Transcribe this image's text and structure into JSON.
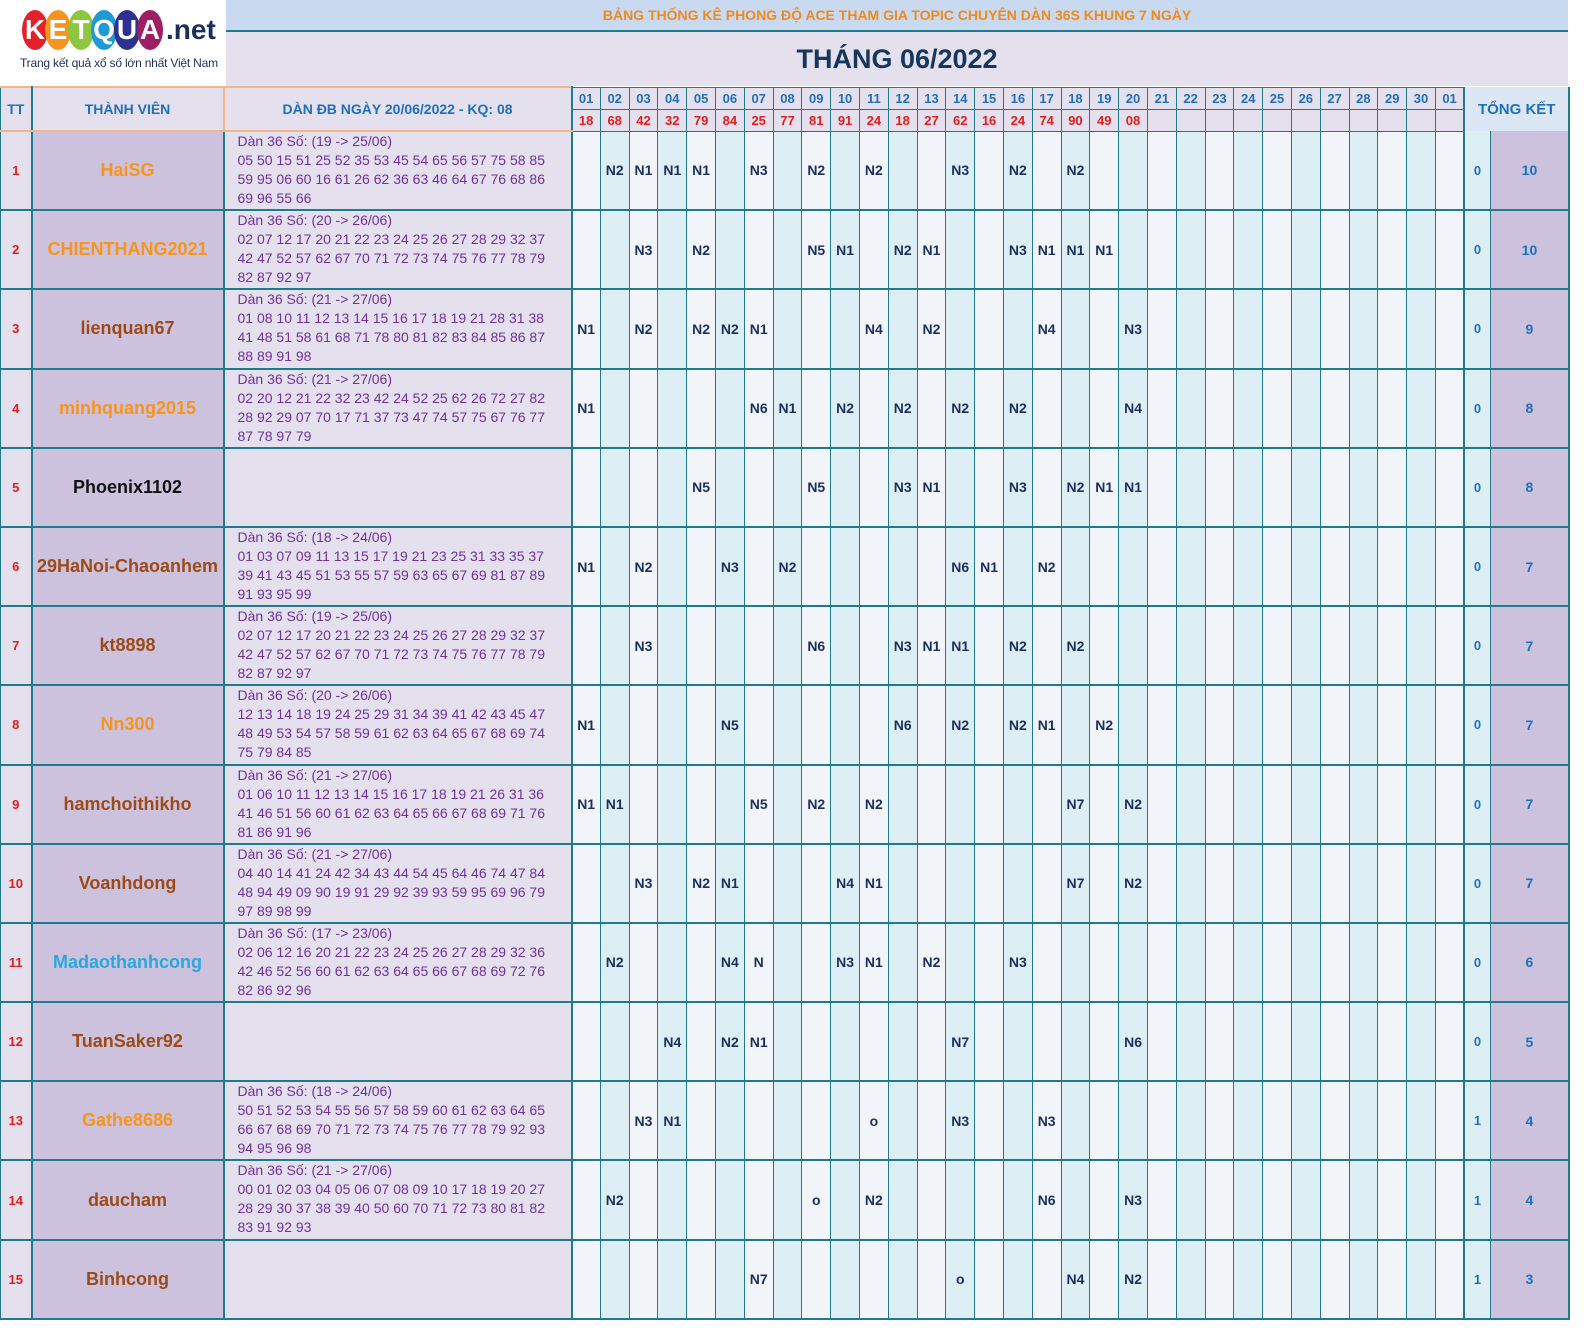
{
  "logo": {
    "letters": [
      "K",
      "E",
      "T",
      "Q",
      "U",
      "A"
    ],
    "letter_colors": [
      "#e4202a",
      "#f7941d",
      "#8dc63f",
      "#1e9ad6",
      "#2e3192",
      "#9e1f63"
    ],
    "suffix": ".net",
    "tagline": "Trang kết quả xổ số lớn nhất Việt Nam"
  },
  "header": {
    "title": "BẢNG THỐNG KÊ PHONG ĐỘ ACE THAM GIA TOPIC CHUYÊN DÀN 36S KHUNG 7 NGÀY",
    "month": "THÁNG 06/2022"
  },
  "columns": {
    "tt": "TT",
    "member": "THÀNH VIÊN",
    "dan": "DÀN ĐB NGÀY 20/06/2022 - KQ: 08",
    "total": "TỔNG KẾT"
  },
  "days": [
    "01",
    "02",
    "03",
    "04",
    "05",
    "06",
    "07",
    "08",
    "09",
    "10",
    "11",
    "12",
    "13",
    "14",
    "15",
    "16",
    "17",
    "18",
    "19",
    "20",
    "21",
    "22",
    "23",
    "24",
    "25",
    "26",
    "27",
    "28",
    "29",
    "30",
    "01"
  ],
  "results": [
    "18",
    "68",
    "42",
    "32",
    "79",
    "84",
    "25",
    "77",
    "81",
    "91",
    "24",
    "18",
    "27",
    "62",
    "16",
    "24",
    "74",
    "90",
    "49",
    "08",
    "",
    "",
    "",
    "",
    "",
    "",
    "",
    "",
    "",
    "",
    ""
  ],
  "rows": [
    {
      "tt": "1",
      "name": "HaiSG",
      "color": "#f7941d",
      "dan": "Dàn 36 Số: (19 -> 25/06)\n05 50 15 51 25 52 35 53 45 54 65 56 57 75 58 85\n59 95 06 60 16 61 26 62 36 63 46 64 67 76 68 86\n69 96 55 66",
      "cells": {
        "2": "N2",
        "3": "N1",
        "4": "N1",
        "5": "N1",
        "7": "N3",
        "9": "N2",
        "11": "N2",
        "14": "N3",
        "16": "N2",
        "18": "N2"
      },
      "s0": "0",
      "s1": "10"
    },
    {
      "tt": "2",
      "name": "CHIENTHANG2021",
      "color": "#f7941d",
      "dan": "Dàn 36 Số: (20 -> 26/06)\n02 07 12 17 20 21 22 23 24 25 26 27 28 29 32 37\n42 47 52 57 62 67 70 71 72 73 74 75 76 77 78 79\n82 87 92 97",
      "cells": {
        "3": "N3",
        "5": "N2",
        "9": "N5",
        "10": "N1",
        "12": "N2",
        "13": "N1",
        "16": "N3",
        "17": "N1",
        "18": "N1",
        "19": "N1"
      },
      "s0": "0",
      "s1": "10"
    },
    {
      "tt": "3",
      "name": "lienquan67",
      "color": "#9c4a1a",
      "dan": "Dàn 36 Số: (21 -> 27/06)\n01 08 10 11 12 13 14 15 16 17 18 19 21 28 31 38\n41 48 51 58 61 68 71 78 80 81 82 83 84 85 86 87\n88 89 91 98",
      "cells": {
        "1": "N1",
        "3": "N2",
        "5": "N2",
        "6": "N2",
        "7": "N1",
        "11": "N4",
        "13": "N2",
        "17": "N4",
        "20": "N3"
      },
      "s0": "0",
      "s1": "9"
    },
    {
      "tt": "4",
      "name": "minhquang2015",
      "color": "#f7941d",
      "dan": "Dàn 36 Số: (21 -> 27/06)\n02 20 12 21 22 32 23 42 24 52 25 62 26 72 27 82\n28 92 29 07 70 17 71 37 73 47 74 57 75 67 76 77\n87 78 97 79",
      "cells": {
        "1": "N1",
        "7": "N6",
        "8": "N1",
        "10": "N2",
        "12": "N2",
        "14": "N2",
        "16": "N2",
        "20": "N4"
      },
      "s0": "0",
      "s1": "8"
    },
    {
      "tt": "5",
      "name": "Phoenix1102",
      "color": "#111111",
      "dan": "",
      "cells": {
        "5": "N5",
        "9": "N5",
        "12": "N3",
        "13": "N1",
        "16": "N3",
        "18": "N2",
        "19": "N1",
        "20": "N1"
      },
      "s0": "0",
      "s1": "8"
    },
    {
      "tt": "6",
      "name": "29HaNoi-Chaoanhem",
      "color": "#9c4a1a",
      "dan": "Dàn 36 Số: (18 -> 24/06)\n01 03 07 09 11 13 15 17 19 21 23 25 31 33 35 37\n39 41 43 45 51 53 55 57 59 63 65 67 69 81 87 89\n91 93 95 99",
      "cells": {
        "1": "N1",
        "3": "N2",
        "6": "N3",
        "8": "N2",
        "14": "N6",
        "15": "N1",
        "17": "N2"
      },
      "s0": "0",
      "s1": "7"
    },
    {
      "tt": "7",
      "name": "kt8898",
      "color": "#9c4a1a",
      "dan": "Dàn 36 Số: (19 -> 25/06)\n02 07 12 17 20 21 22 23 24 25 26 27 28 29 32 37\n42 47 52 57 62 67 70 71 72 73 74 75 76 77 78 79\n82 87 92 97",
      "cells": {
        "3": "N3",
        "9": "N6",
        "12": "N3",
        "13": "N1",
        "14": "N1",
        "16": "N2",
        "18": "N2"
      },
      "s0": "0",
      "s1": "7"
    },
    {
      "tt": "8",
      "name": "Nn300",
      "color": "#f7941d",
      "dan": "Dàn 36 Số: (20 -> 26/06)\n12 13 14 18 19 24 25 29 31 34 39 41 42 43 45 47\n48 49 53 54 57 58 59 61 62 63 64 65 67 68 69 74\n75 79 84 85",
      "cells": {
        "1": "N1",
        "6": "N5",
        "12": "N6",
        "14": "N2",
        "16": "N2",
        "17": "N1",
        "19": "N2"
      },
      "s0": "0",
      "s1": "7"
    },
    {
      "tt": "9",
      "name": "hamchoithikho",
      "color": "#9c4a1a",
      "dan": "Dàn 36 Số: (21 -> 27/06)\n01 06 10 11 12 13 14 15 16 17 18 19 21 26 31 36\n41 46 51 56 60 61 62 63 64 65 66 67 68 69 71 76\n81 86 91 96",
      "cells": {
        "1": "N1",
        "2": "N1",
        "7": "N5",
        "9": "N2",
        "11": "N2",
        "18": "N7",
        "20": "N2"
      },
      "s0": "0",
      "s1": "7"
    },
    {
      "tt": "10",
      "name": "Voanhdong",
      "color": "#9c4a1a",
      "dan": "Dàn 36 Số: (21 -> 27/06)\n04 40 14 41 24 42 34 43 44 54 45 64 46 74 47 84\n48 94 49 09 90 19 91 29 92 39 93 59 95 69 96 79\n97 89 98 99",
      "cells": {
        "3": "N3",
        "5": "N2",
        "6": "N1",
        "10": "N4",
        "11": "N1",
        "18": "N7",
        "20": "N2"
      },
      "s0": "0",
      "s1": "7"
    },
    {
      "tt": "11",
      "name": "Madaothanhcong",
      "color": "#29a8e0",
      "dan": "Dàn 36 Số: (17 -> 23/06)\n02 06 12 16 20 21 22 23 24 25 26 27 28 29 32 36\n42 46 52 56 60 61 62 63 64 65 66 67 68 69 72 76\n82 86 92 96",
      "cells": {
        "2": "N2",
        "6": "N4",
        "7": "N",
        "10": "N3",
        "11": "N1",
        "13": "N2",
        "16": "N3"
      },
      "s0": "0",
      "s1": "6"
    },
    {
      "tt": "12",
      "name": "TuanSaker92",
      "color": "#9c4a1a",
      "dan": "",
      "cells": {
        "4": "N4",
        "6": "N2",
        "7": "N1",
        "14": "N7",
        "20": "N6"
      },
      "s0": "0",
      "s1": "5"
    },
    {
      "tt": "13",
      "name": "Gathe8686",
      "color": "#f7941d",
      "dan": "Dàn 36 Số: (18 -> 24/06)\n50 51 52 53 54 55 56 57 58 59 60 61 62 63 64 65\n66 67 68 69 70 71 72 73 74 75 76 77 78 79 92 93\n94 95 96 98",
      "cells": {
        "3": "N3",
        "4": "N1",
        "11": "o",
        "14": "N3",
        "17": "N3"
      },
      "s0": "1",
      "s1": "4"
    },
    {
      "tt": "14",
      "name": "daucham",
      "color": "#9c4a1a",
      "dan": "Dàn 36 Số: (21 -> 27/06)\n00 01 02 03 04 05 06 07 08 09 10 17 18 19 20 27\n28 29 30 37 38 39 40 50 60 70 71 72 73 80 81 82\n83 91 92 93",
      "cells": {
        "2": "N2",
        "9": "o",
        "11": "N2",
        "17": "N6",
        "20": "N3"
      },
      "s0": "1",
      "s1": "4"
    },
    {
      "tt": "15",
      "name": "Binhcong",
      "color": "#9c4a1a",
      "dan": "",
      "cells": {
        "7": "N7",
        "14": "o",
        "18": "N4",
        "20": "N2"
      },
      "s0": "1",
      "s1": "3"
    }
  ]
}
